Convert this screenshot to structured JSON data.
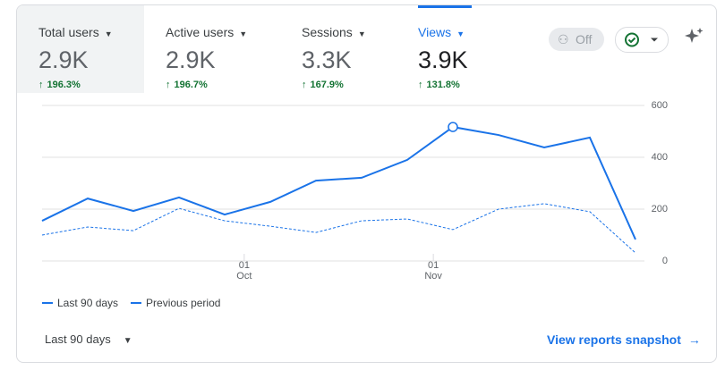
{
  "tabs": [
    {
      "label": "Total users",
      "value": "2.9K",
      "change": "196.3%"
    },
    {
      "label": "Active users",
      "value": "2.9K",
      "change": "196.7%"
    },
    {
      "label": "Sessions",
      "value": "3.3K",
      "change": "167.9%"
    },
    {
      "label": "Views",
      "value": "3.9K",
      "change": "131.8%"
    }
  ],
  "badge": "Off",
  "chart_data": {
    "type": "line",
    "x": [
      0,
      7,
      14,
      21,
      28,
      35,
      42,
      49,
      56,
      63,
      70,
      77,
      84,
      91
    ],
    "xlim": [
      0,
      91
    ],
    "xticks": [
      {
        "value": 31,
        "label": "01 Oct"
      },
      {
        "value": 60,
        "label": "01 Nov"
      }
    ],
    "ylim": [
      0,
      600
    ],
    "yticks": [
      0,
      200,
      400,
      600
    ],
    "grid": true,
    "series": [
      {
        "name": "Last 90 days",
        "color": "#1a73e8",
        "style": "solid",
        "values": [
          155,
          241,
          193,
          245,
          179,
          228,
          310,
          321,
          390,
          517,
          486,
          438,
          476,
          83
        ]
      },
      {
        "name": "Previous period",
        "color": "#1a73e8",
        "style": "dashed",
        "values": [
          100,
          131,
          117,
          203,
          155,
          134,
          110,
          155,
          162,
          121,
          200,
          221,
          190,
          31
        ]
      }
    ]
  },
  "footer": {
    "range": "Last 90 days",
    "link": "View reports snapshot"
  }
}
